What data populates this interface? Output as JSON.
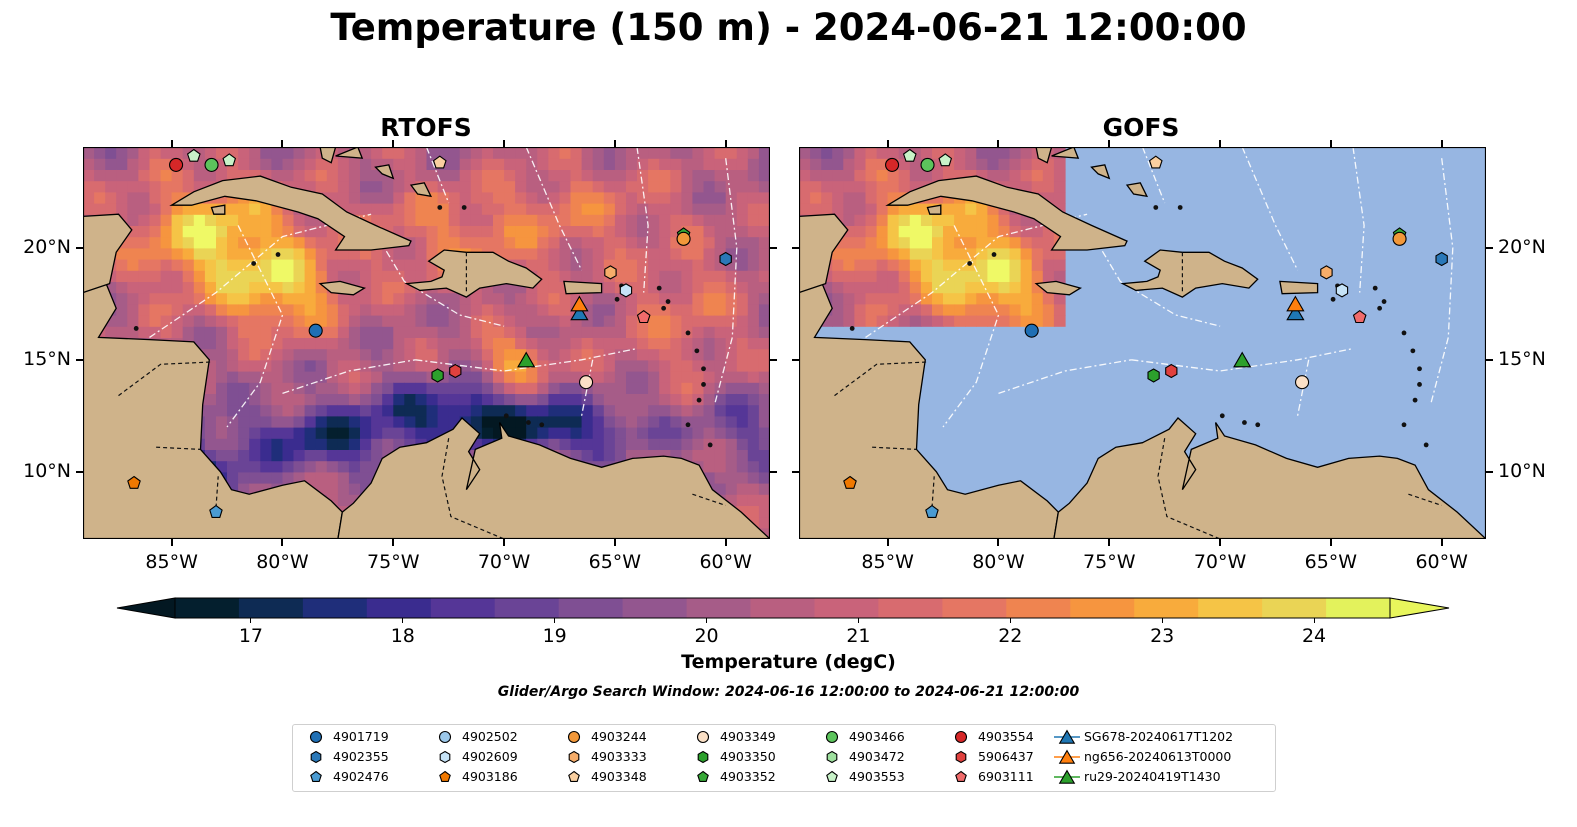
{
  "title": "Temperature (150 m) - 2024-06-21 12:00:00",
  "panels": [
    {
      "title": "RTOFS",
      "ocean_field_clipped": false
    },
    {
      "title": "GOFS",
      "ocean_field_clipped": true
    }
  ],
  "axes": {
    "x_ticks": [
      "85°W",
      "80°W",
      "75°W",
      "70°W",
      "65°W",
      "60°W"
    ],
    "x_values": [
      -85,
      -80,
      -75,
      -70,
      -65,
      -60
    ],
    "y_ticks": [
      "20°N",
      "15°N",
      "10°N"
    ],
    "y_values": [
      20,
      15,
      10
    ],
    "lon_range": [
      -89,
      -58
    ],
    "lat_range": [
      7,
      24.5
    ]
  },
  "colorbar": {
    "label": "Temperature (degC)",
    "ticks": [
      "17",
      "18",
      "19",
      "20",
      "21",
      "22",
      "23",
      "24"
    ],
    "tick_values": [
      17,
      18,
      19,
      20,
      21,
      22,
      23,
      24
    ],
    "range": [
      16.5,
      24.5
    ],
    "extend": "both",
    "colors": [
      "#041f2e",
      "#0e2b54",
      "#1f2e7a",
      "#3a2c8f",
      "#553697",
      "#6a4496",
      "#7f4f93",
      "#93568f",
      "#a65c88",
      "#b95f80",
      "#c9637a",
      "#d86b6f",
      "#e57663",
      "#ef8450",
      "#f6953f",
      "#f8ab3c",
      "#f5c446",
      "#ead455",
      "#e3f25c"
    ]
  },
  "search_window": "Glider/Argo Search Window: 2024-06-16 12:00:00 to 2024-06-21 12:00:00",
  "colors": {
    "ocean_masked": "#97b6e2",
    "land": "#cfb38a",
    "contour": "#ffffff"
  },
  "legend": [
    {
      "label": "4901719",
      "marker": "circle",
      "color": "#1f6fb4"
    },
    {
      "label": "4902355",
      "marker": "hexagon",
      "color": "#2a78b8"
    },
    {
      "label": "4902476",
      "marker": "pentagon",
      "color": "#4a9bd2"
    },
    {
      "label": "4902502",
      "marker": "circle",
      "color": "#9cc8ea"
    },
    {
      "label": "4902609",
      "marker": "hexagon",
      "color": "#c6e3f7"
    },
    {
      "label": "4903186",
      "marker": "pentagon",
      "color": "#f07800"
    },
    {
      "label": "4903244",
      "marker": "circle",
      "color": "#f2983a"
    },
    {
      "label": "4903333",
      "marker": "hexagon",
      "color": "#f6ad6a"
    },
    {
      "label": "4903348",
      "marker": "pentagon",
      "color": "#f9cfa0"
    },
    {
      "label": "4903349",
      "marker": "circle",
      "color": "#fbe0c6"
    },
    {
      "label": "4903350",
      "marker": "hexagon",
      "color": "#2ca02c"
    },
    {
      "label": "4903352",
      "marker": "pentagon",
      "color": "#37a837"
    },
    {
      "label": "4903466",
      "marker": "circle",
      "color": "#5cc45c"
    },
    {
      "label": "4903472",
      "marker": "hexagon",
      "color": "#9ee09e"
    },
    {
      "label": "4903553",
      "marker": "pentagon",
      "color": "#c8f2c8"
    },
    {
      "label": "4903554",
      "marker": "circle",
      "color": "#d62728"
    },
    {
      "label": "5906437",
      "marker": "hexagon",
      "color": "#e0413e"
    },
    {
      "label": "6903111",
      "marker": "pentagon",
      "color": "#f06b6b"
    },
    {
      "label": "SG678-20240617T1202",
      "marker": "triangle",
      "color": "#1f77b4"
    },
    {
      "label": "ng656-20240613T0000",
      "marker": "triangle",
      "color": "#ff7f0e"
    },
    {
      "label": "ru29-20240419T1430",
      "marker": "triangle",
      "color": "#2ca02c"
    }
  ],
  "floats": [
    {
      "lon": -84.8,
      "lat": 23.7,
      "color": "#d62728",
      "marker": "circle"
    },
    {
      "lon": -84.0,
      "lat": 24.1,
      "color": "#c8f2c8",
      "marker": "pentagon"
    },
    {
      "lon": -83.2,
      "lat": 23.7,
      "color": "#5cc45c",
      "marker": "circle"
    },
    {
      "lon": -82.4,
      "lat": 23.9,
      "color": "#c8f2c8",
      "marker": "pentagon"
    },
    {
      "lon": -72.9,
      "lat": 23.8,
      "color": "#f9cfa0",
      "marker": "pentagon"
    },
    {
      "lon": -78.5,
      "lat": 16.3,
      "color": "#1f6fb4",
      "marker": "circle"
    },
    {
      "lon": -73.0,
      "lat": 14.3,
      "color": "#2ca02c",
      "marker": "hexagon"
    },
    {
      "lon": -72.2,
      "lat": 14.5,
      "color": "#e0413e",
      "marker": "hexagon"
    },
    {
      "lon": -66.3,
      "lat": 14.0,
      "color": "#fbe0c6",
      "marker": "circle"
    },
    {
      "lon": -65.2,
      "lat": 18.9,
      "color": "#f6ad6a",
      "marker": "hexagon"
    },
    {
      "lon": -64.5,
      "lat": 18.1,
      "color": "#c6e3f7",
      "marker": "hexagon"
    },
    {
      "lon": -63.7,
      "lat": 16.9,
      "color": "#f06b6b",
      "marker": "pentagon"
    },
    {
      "lon": -61.9,
      "lat": 20.6,
      "color": "#37a837",
      "marker": "pentagon"
    },
    {
      "lon": -61.9,
      "lat": 20.4,
      "color": "#f2983a",
      "marker": "circle"
    },
    {
      "lon": -60.0,
      "lat": 19.5,
      "color": "#2a78b8",
      "marker": "hexagon"
    },
    {
      "lon": -86.7,
      "lat": 9.5,
      "color": "#f07800",
      "marker": "pentagon"
    },
    {
      "lon": -83.0,
      "lat": 8.2,
      "color": "#4a9bd2",
      "marker": "pentagon"
    }
  ],
  "gliders": [
    {
      "lon": -66.6,
      "lat": 17.1,
      "color": "#1f77b4"
    },
    {
      "lon": -66.6,
      "lat": 17.5,
      "color": "#ff7f0e"
    },
    {
      "lon": -69.0,
      "lat": 15.0,
      "color": "#2ca02c"
    }
  ]
}
